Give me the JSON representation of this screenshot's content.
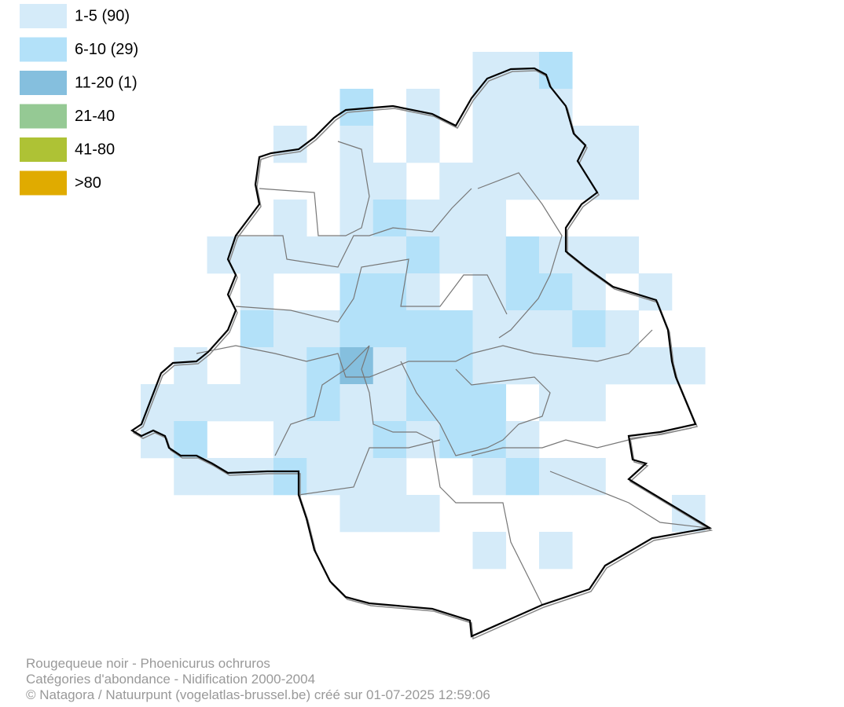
{
  "legend": [
    {
      "label": "1-5 (90)",
      "color": "#d5ebf9"
    },
    {
      "label": "6-10 (29)",
      "color": "#b3e1f9"
    },
    {
      "label": "11-20 (1)",
      "color": "#85bfde"
    },
    {
      "label": "21-40",
      "color": "#95c994"
    },
    {
      "label": "41-80",
      "color": "#aec235"
    },
    {
      "label": ">80",
      "color": "#e0ab00"
    }
  ],
  "footer": [
    "Rougequeue noir - Phoenicurus ochruros",
    "Catégories d'abondance - Nidification 2000-2004",
    "© Natagora / Natuurpunt (vogelatlas-brussel.be) créé sur 01-07-2025 12:59:06"
  ]
}
